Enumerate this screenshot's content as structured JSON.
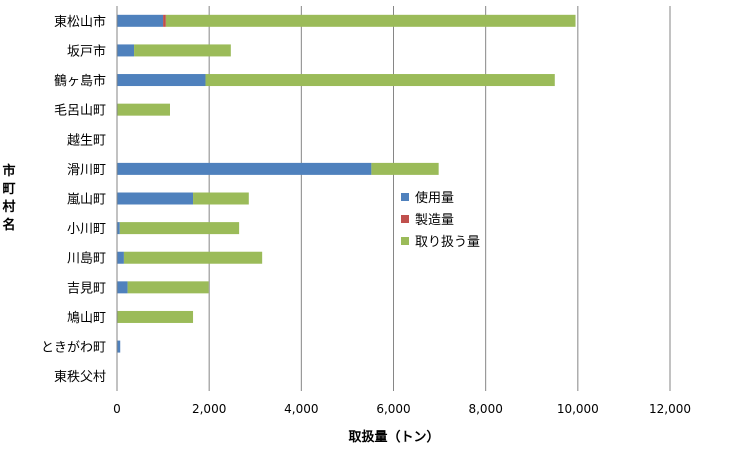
{
  "chart_data": {
    "type": "bar",
    "orientation": "horizontal",
    "stacked": true,
    "title": "",
    "xlabel": "取扱量（トン）",
    "ylabel": "市町村名",
    "xlim": [
      0,
      12000
    ],
    "xticks": [
      0,
      2000,
      4000,
      6000,
      8000,
      10000,
      12000
    ],
    "xtick_labels": [
      "0",
      "2,000",
      "4,000",
      "6,000",
      "8,000",
      "10,000",
      "12,000"
    ],
    "grid": "vertical",
    "legend_position": "right-middle",
    "categories": [
      "東松山市",
      "坂戸市",
      "鶴ヶ島市",
      "毛呂山町",
      "越生町",
      "滑川町",
      "嵐山町",
      "小川町",
      "川島町",
      "吉見町",
      "鳩山町",
      "ときがわ町",
      "東秩父村"
    ],
    "series": [
      {
        "name": "使用量",
        "color": "#4f81bd",
        "values": [
          1000,
          370,
          1920,
          0,
          0,
          5520,
          1650,
          60,
          150,
          230,
          0,
          70,
          0
        ]
      },
      {
        "name": "製造量",
        "color": "#c0504d",
        "values": [
          60,
          0,
          0,
          0,
          0,
          0,
          0,
          0,
          0,
          0,
          0,
          0,
          0
        ]
      },
      {
        "name": "取り扱う量",
        "color": "#9bbb59",
        "values": [
          8890,
          2100,
          7580,
          1150,
          0,
          1460,
          1210,
          2590,
          3000,
          1760,
          1650,
          0,
          0
        ]
      }
    ]
  }
}
